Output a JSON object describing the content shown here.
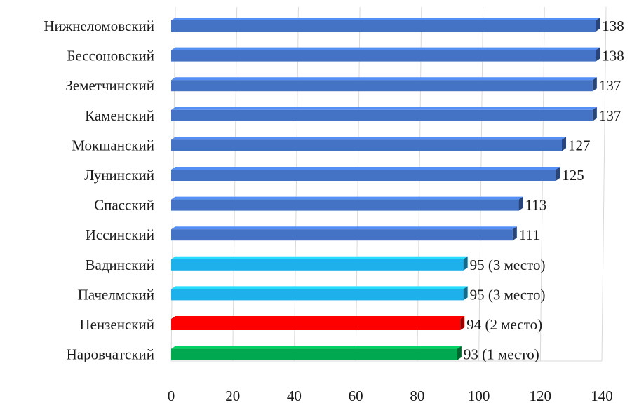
{
  "chart_data": {
    "type": "bar",
    "orientation": "horizontal",
    "style": "3d",
    "categories": [
      "Нижнеломовский",
      "Бессоновский",
      "Земетчинский",
      "Каменский",
      "Мокшанский",
      "Лунинский",
      "Спасский",
      "Иссинский",
      "Вадинский",
      "Пачелмский",
      "Пензенский",
      "Наровчатский"
    ],
    "values": [
      138,
      138,
      137,
      137,
      127,
      125,
      113,
      111,
      95,
      95,
      94,
      93
    ],
    "data_labels": [
      "138",
      "138",
      "137",
      "137",
      "127",
      "125",
      "113",
      "111",
      "95 (3 место)",
      "95 (3 место)",
      "94 (2 место)",
      "93 (1 место)"
    ],
    "bar_colors": [
      "#4472C4",
      "#4472C4",
      "#4472C4",
      "#4472C4",
      "#4472C4",
      "#4472C4",
      "#4472C4",
      "#4472C4",
      "#1EB0EA",
      "#1EB0EA",
      "#FF0000",
      "#00A84F"
    ],
    "xlim": [
      0,
      140
    ],
    "xticks": [
      "0",
      "20",
      "40",
      "60",
      "80",
      "100",
      "120",
      "140"
    ],
    "title": "",
    "xlabel": "",
    "ylabel": "",
    "grid": "vertical",
    "legend": "none"
  }
}
